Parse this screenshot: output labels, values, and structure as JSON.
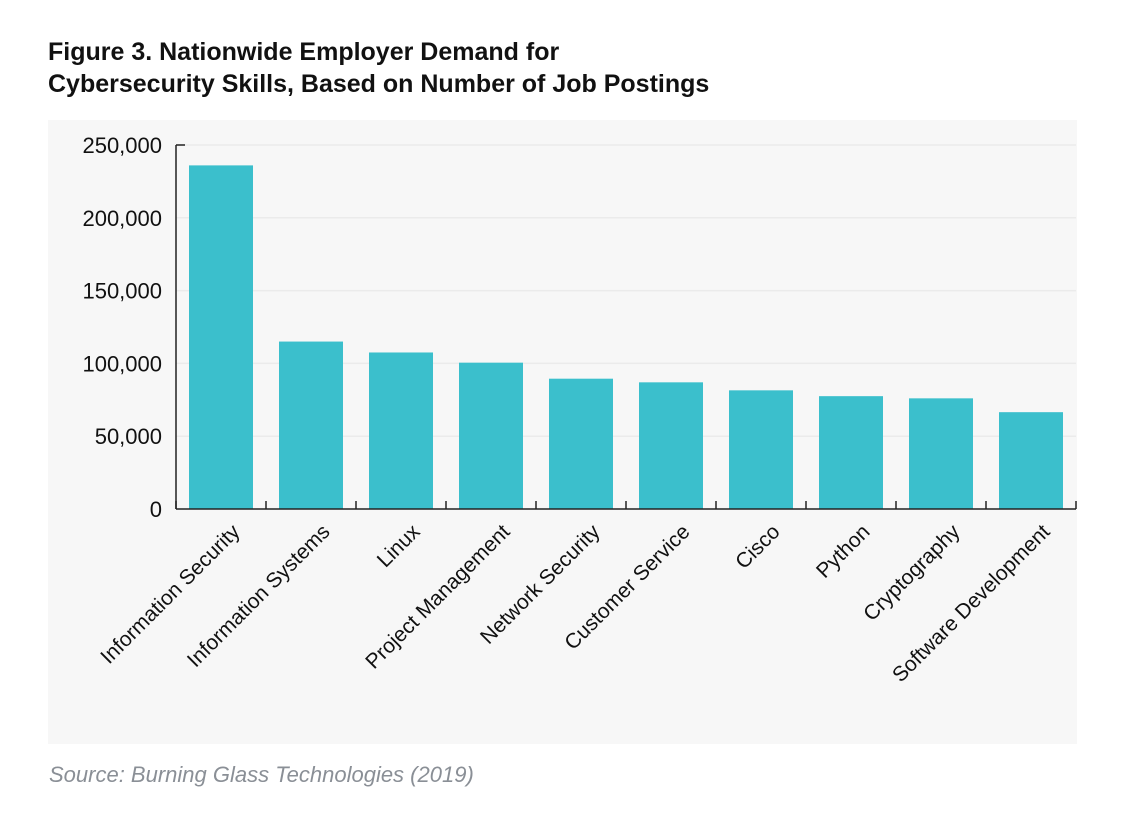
{
  "header": {
    "title_line1": "Figure 3. Nationwide Employer Demand for",
    "title_line2": "Cybersecurity Skills, Based on Number of Job Postings"
  },
  "footer": {
    "source": "Source: Burning Glass Technologies (2019)"
  },
  "chart_data": {
    "type": "bar",
    "title": "Figure 3. Nationwide Employer Demand for Cybersecurity Skills, Based on Number of Job Postings",
    "xlabel": "",
    "ylabel": "",
    "categories": [
      "Information Security",
      "Information Systems",
      "Linux",
      "Project Management",
      "Network Security",
      "Customer Service",
      "Cisco",
      "Python",
      "Cryptography",
      "Software Development"
    ],
    "values": [
      236000,
      115000,
      107500,
      100500,
      89500,
      87000,
      81500,
      77500,
      76000,
      66500
    ],
    "ylim": [
      0,
      250000
    ],
    "yticks": [
      0,
      50000,
      100000,
      150000,
      200000,
      250000
    ],
    "ytick_labels": [
      "0",
      "50,000",
      "100,000",
      "150,000",
      "200,000",
      "250,000"
    ],
    "grid": true,
    "legend": "none",
    "bar_color": "#3bbfcc",
    "panel_color": "#f7f7f7"
  }
}
